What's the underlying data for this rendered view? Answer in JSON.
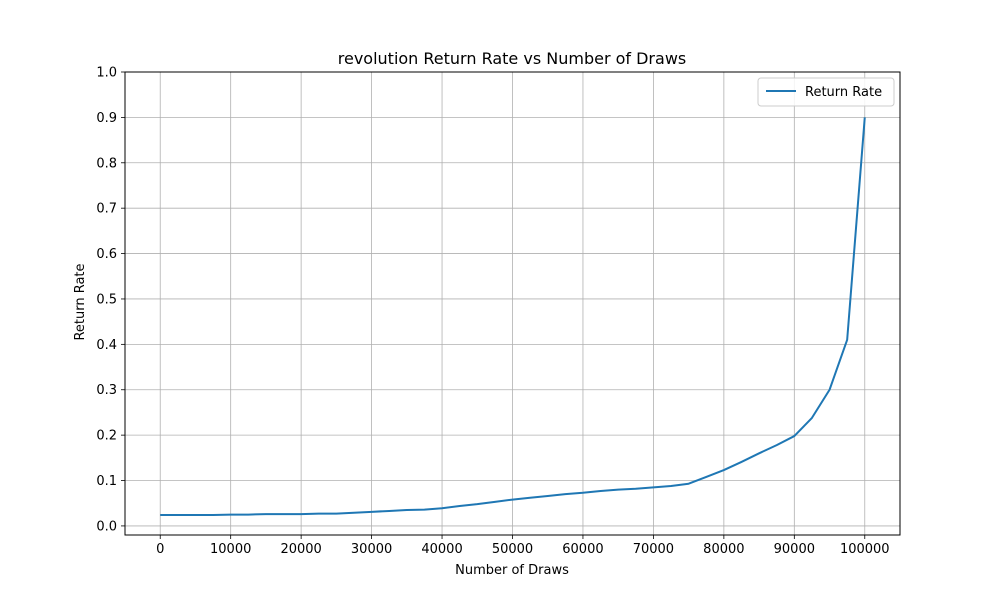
{
  "chart_data": {
    "type": "line",
    "title": "revolution Return Rate vs Number of Draws",
    "xlabel": "Number of Draws",
    "ylabel": "Return Rate",
    "xlim": [
      -5000,
      105000
    ],
    "ylim": [
      -0.02,
      1.0
    ],
    "x_ticks": [
      0,
      10000,
      20000,
      30000,
      40000,
      50000,
      60000,
      70000,
      80000,
      90000,
      100000
    ],
    "x_tick_labels": [
      "0",
      "10000",
      "20000",
      "30000",
      "40000",
      "50000",
      "60000",
      "70000",
      "80000",
      "90000",
      "100000"
    ],
    "y_ticks": [
      0.0,
      0.1,
      0.2,
      0.3,
      0.4,
      0.5,
      0.6,
      0.7,
      0.8,
      0.9,
      1.0
    ],
    "y_tick_labels": [
      "0.0",
      "0.1",
      "0.2",
      "0.3",
      "0.4",
      "0.5",
      "0.6",
      "0.7",
      "0.8",
      "0.9",
      "1.0"
    ],
    "grid": true,
    "legend_position": "top-right",
    "series": [
      {
        "name": "Return Rate",
        "color": "#1f77b4",
        "x": [
          0,
          2500,
          5000,
          7500,
          10000,
          12500,
          15000,
          17500,
          20000,
          22500,
          25000,
          27500,
          30000,
          32500,
          35000,
          37500,
          40000,
          42500,
          45000,
          47500,
          50000,
          52500,
          55000,
          57500,
          60000,
          62500,
          65000,
          67500,
          70000,
          72500,
          75000,
          77500,
          80000,
          82500,
          85000,
          87500,
          90000,
          92500,
          95000,
          97500,
          100000
        ],
        "y": [
          0.024,
          0.024,
          0.024,
          0.024,
          0.025,
          0.025,
          0.026,
          0.026,
          0.026,
          0.027,
          0.027,
          0.029,
          0.031,
          0.033,
          0.035,
          0.036,
          0.039,
          0.044,
          0.048,
          0.053,
          0.058,
          0.062,
          0.066,
          0.07,
          0.073,
          0.077,
          0.08,
          0.082,
          0.085,
          0.088,
          0.093,
          0.108,
          0.123,
          0.141,
          0.16,
          0.178,
          0.198,
          0.238,
          0.3,
          0.41,
          0.9
        ]
      }
    ]
  }
}
